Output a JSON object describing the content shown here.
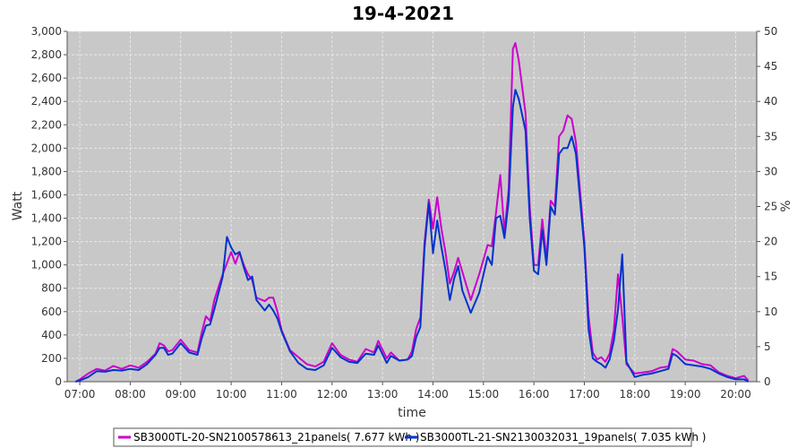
{
  "chart_data": {
    "type": "line",
    "title": "19-4-2021",
    "xlabel": "time",
    "ylabel": "Watt",
    "y2label": "%",
    "ylim": [
      0,
      3000
    ],
    "y2lim": [
      0,
      50
    ],
    "xlim": [
      "06:45",
      "20:25"
    ],
    "x_ticks": [
      "07:00",
      "08:00",
      "09:00",
      "10:00",
      "11:00",
      "12:00",
      "13:00",
      "14:00",
      "15:00",
      "16:00",
      "17:00",
      "18:00",
      "19:00",
      "20:00"
    ],
    "y_ticks": [
      "0",
      "200",
      "400",
      "600",
      "800",
      "1,000",
      "1,200",
      "1,400",
      "1,600",
      "1,800",
      "2,000",
      "2,200",
      "2,400",
      "2,600",
      "2,800",
      "3,000"
    ],
    "y2_ticks": [
      "0",
      "5",
      "10",
      "15",
      "20",
      "25",
      "30",
      "35",
      "40",
      "45",
      "50"
    ],
    "grid": true,
    "legend_position": "bottom",
    "colors": {
      "plot_bg": "#c8c8c8",
      "grid": "#e8e8e8"
    },
    "series": [
      {
        "name": "SB3000TL-20-SN2100578613_21panels( 7.677 kWh )",
        "color": "#cc00cc",
        "points": [
          [
            "06:55",
            0
          ],
          [
            "07:00",
            20
          ],
          [
            "07:10",
            70
          ],
          [
            "07:20",
            110
          ],
          [
            "07:30",
            95
          ],
          [
            "07:40",
            135
          ],
          [
            "07:50",
            110
          ],
          [
            "08:00",
            140
          ],
          [
            "08:10",
            120
          ],
          [
            "08:20",
            170
          ],
          [
            "08:30",
            240
          ],
          [
            "08:35",
            330
          ],
          [
            "08:40",
            310
          ],
          [
            "08:45",
            260
          ],
          [
            "08:50",
            270
          ],
          [
            "09:00",
            360
          ],
          [
            "09:10",
            270
          ],
          [
            "09:20",
            250
          ],
          [
            "09:25",
            420
          ],
          [
            "09:30",
            560
          ],
          [
            "09:35",
            520
          ],
          [
            "09:40",
            700
          ],
          [
            "09:50",
            920
          ],
          [
            "10:00",
            1110
          ],
          [
            "10:05",
            1010
          ],
          [
            "10:10",
            1110
          ],
          [
            "10:15",
            1000
          ],
          [
            "10:20",
            920
          ],
          [
            "10:25",
            870
          ],
          [
            "10:30",
            720
          ],
          [
            "10:40",
            690
          ],
          [
            "10:45",
            720
          ],
          [
            "10:50",
            720
          ],
          [
            "10:55",
            600
          ],
          [
            "11:00",
            440
          ],
          [
            "11:10",
            270
          ],
          [
            "11:20",
            210
          ],
          [
            "11:30",
            150
          ],
          [
            "11:40",
            130
          ],
          [
            "11:50",
            170
          ],
          [
            "12:00",
            330
          ],
          [
            "12:10",
            230
          ],
          [
            "12:20",
            190
          ],
          [
            "12:30",
            170
          ],
          [
            "12:40",
            280
          ],
          [
            "12:50",
            250
          ],
          [
            "12:55",
            350
          ],
          [
            "13:05",
            200
          ],
          [
            "13:10",
            250
          ],
          [
            "13:20",
            180
          ],
          [
            "13:30",
            190
          ],
          [
            "13:35",
            260
          ],
          [
            "13:40",
            450
          ],
          [
            "13:45",
            550
          ],
          [
            "13:50",
            1200
          ],
          [
            "13:55",
            1560
          ],
          [
            "14:00",
            1310
          ],
          [
            "14:05",
            1580
          ],
          [
            "14:10",
            1310
          ],
          [
            "14:15",
            1100
          ],
          [
            "14:20",
            840
          ],
          [
            "14:25",
            940
          ],
          [
            "14:30",
            1060
          ],
          [
            "14:35",
            940
          ],
          [
            "14:45",
            700
          ],
          [
            "14:55",
            920
          ],
          [
            "15:05",
            1170
          ],
          [
            "15:10",
            1160
          ],
          [
            "15:15",
            1450
          ],
          [
            "15:20",
            1770
          ],
          [
            "15:25",
            1280
          ],
          [
            "15:30",
            1650
          ],
          [
            "15:35",
            2850
          ],
          [
            "15:38",
            2900
          ],
          [
            "15:42",
            2750
          ],
          [
            "15:50",
            2300
          ],
          [
            "15:55",
            1500
          ],
          [
            "16:00",
            1000
          ],
          [
            "16:05",
            1000
          ],
          [
            "16:10",
            1390
          ],
          [
            "16:15",
            1050
          ],
          [
            "16:20",
            1550
          ],
          [
            "16:25",
            1500
          ],
          [
            "16:30",
            2100
          ],
          [
            "16:35",
            2150
          ],
          [
            "16:40",
            2280
          ],
          [
            "16:45",
            2250
          ],
          [
            "16:50",
            2050
          ],
          [
            "17:00",
            1200
          ],
          [
            "17:05",
            560
          ],
          [
            "17:10",
            250
          ],
          [
            "17:15",
            190
          ],
          [
            "17:20",
            210
          ],
          [
            "17:25",
            170
          ],
          [
            "17:30",
            240
          ],
          [
            "17:35",
            440
          ],
          [
            "17:40",
            920
          ],
          [
            "17:45",
            560
          ],
          [
            "17:50",
            150
          ],
          [
            "18:00",
            70
          ],
          [
            "18:10",
            80
          ],
          [
            "18:20",
            90
          ],
          [
            "18:30",
            120
          ],
          [
            "18:40",
            130
          ],
          [
            "18:45",
            280
          ],
          [
            "18:50",
            260
          ],
          [
            "19:00",
            190
          ],
          [
            "19:10",
            180
          ],
          [
            "19:20",
            150
          ],
          [
            "19:30",
            140
          ],
          [
            "19:40",
            80
          ],
          [
            "19:50",
            50
          ],
          [
            "20:00",
            30
          ],
          [
            "20:10",
            50
          ],
          [
            "20:15",
            10
          ]
        ]
      },
      {
        "name": "SB3000TL-21-SN2130032031_19panels( 7.035 kWh )",
        "color": "#0033cc",
        "points": [
          [
            "06:55",
            0
          ],
          [
            "07:00",
            10
          ],
          [
            "07:10",
            40
          ],
          [
            "07:20",
            90
          ],
          [
            "07:30",
            85
          ],
          [
            "07:40",
            100
          ],
          [
            "07:50",
            95
          ],
          [
            "08:00",
            110
          ],
          [
            "08:10",
            100
          ],
          [
            "08:20",
            150
          ],
          [
            "08:30",
            230
          ],
          [
            "08:35",
            290
          ],
          [
            "08:40",
            290
          ],
          [
            "08:45",
            230
          ],
          [
            "08:50",
            240
          ],
          [
            "09:00",
            330
          ],
          [
            "09:10",
            250
          ],
          [
            "09:20",
            230
          ],
          [
            "09:25",
            370
          ],
          [
            "09:30",
            480
          ],
          [
            "09:35",
            490
          ],
          [
            "09:40",
            620
          ],
          [
            "09:50",
            900
          ],
          [
            "09:55",
            1240
          ],
          [
            "10:00",
            1150
          ],
          [
            "10:05",
            1090
          ],
          [
            "10:10",
            1110
          ],
          [
            "10:15",
            980
          ],
          [
            "10:20",
            870
          ],
          [
            "10:25",
            900
          ],
          [
            "10:30",
            700
          ],
          [
            "10:40",
            610
          ],
          [
            "10:45",
            660
          ],
          [
            "10:50",
            610
          ],
          [
            "10:55",
            540
          ],
          [
            "11:00",
            430
          ],
          [
            "11:10",
            260
          ],
          [
            "11:20",
            160
          ],
          [
            "11:30",
            110
          ],
          [
            "11:40",
            100
          ],
          [
            "11:50",
            140
          ],
          [
            "12:00",
            290
          ],
          [
            "12:10",
            210
          ],
          [
            "12:20",
            170
          ],
          [
            "12:30",
            160
          ],
          [
            "12:40",
            240
          ],
          [
            "12:50",
            230
          ],
          [
            "12:55",
            310
          ],
          [
            "13:05",
            160
          ],
          [
            "13:10",
            220
          ],
          [
            "13:20",
            180
          ],
          [
            "13:30",
            190
          ],
          [
            "13:35",
            220
          ],
          [
            "13:40",
            380
          ],
          [
            "13:45",
            470
          ],
          [
            "13:50",
            1150
          ],
          [
            "13:55",
            1530
          ],
          [
            "14:00",
            1100
          ],
          [
            "14:05",
            1380
          ],
          [
            "14:10",
            1150
          ],
          [
            "14:15",
            950
          ],
          [
            "14:20",
            700
          ],
          [
            "14:25",
            880
          ],
          [
            "14:30",
            990
          ],
          [
            "14:35",
            780
          ],
          [
            "14:45",
            590
          ],
          [
            "14:55",
            760
          ],
          [
            "15:05",
            1070
          ],
          [
            "15:10",
            1000
          ],
          [
            "15:15",
            1400
          ],
          [
            "15:20",
            1420
          ],
          [
            "15:25",
            1230
          ],
          [
            "15:30",
            1550
          ],
          [
            "15:35",
            2350
          ],
          [
            "15:38",
            2500
          ],
          [
            "15:42",
            2420
          ],
          [
            "15:50",
            2150
          ],
          [
            "15:55",
            1400
          ],
          [
            "16:00",
            950
          ],
          [
            "16:05",
            920
          ],
          [
            "16:10",
            1300
          ],
          [
            "16:15",
            1000
          ],
          [
            "16:20",
            1500
          ],
          [
            "16:25",
            1430
          ],
          [
            "16:30",
            1950
          ],
          [
            "16:35",
            2000
          ],
          [
            "16:40",
            2000
          ],
          [
            "16:45",
            2100
          ],
          [
            "16:50",
            1950
          ],
          [
            "17:00",
            1150
          ],
          [
            "17:05",
            450
          ],
          [
            "17:10",
            200
          ],
          [
            "17:15",
            170
          ],
          [
            "17:20",
            150
          ],
          [
            "17:25",
            120
          ],
          [
            "17:30",
            190
          ],
          [
            "17:35",
            350
          ],
          [
            "17:40",
            620
          ],
          [
            "17:45",
            1090
          ],
          [
            "17:50",
            170
          ],
          [
            "18:00",
            40
          ],
          [
            "18:10",
            60
          ],
          [
            "18:20",
            70
          ],
          [
            "18:30",
            90
          ],
          [
            "18:40",
            110
          ],
          [
            "18:45",
            240
          ],
          [
            "18:50",
            220
          ],
          [
            "19:00",
            150
          ],
          [
            "19:10",
            140
          ],
          [
            "19:20",
            130
          ],
          [
            "19:30",
            110
          ],
          [
            "19:40",
            70
          ],
          [
            "19:50",
            40
          ],
          [
            "20:00",
            20
          ],
          [
            "20:10",
            20
          ],
          [
            "20:15",
            0
          ]
        ]
      }
    ]
  }
}
